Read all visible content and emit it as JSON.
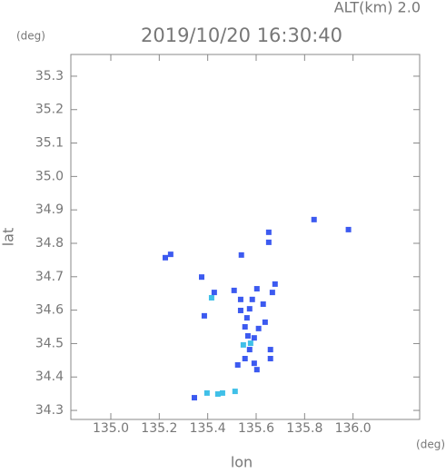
{
  "chart_data": {
    "type": "scatter",
    "header": "ALT(km) 2.0",
    "title": "2019/10/20 16:30:40",
    "y_unit": "(deg)",
    "x_unit": "(deg)",
    "xlabel": "lon",
    "ylabel": "lat",
    "xlim": [
      134.835,
      136.275
    ],
    "ylim": [
      34.273,
      35.365
    ],
    "xticks": [
      {
        "value": 135.0,
        "label": "135.0"
      },
      135.2,
      135.4,
      135.6,
      135.8,
      {
        "value": 136.0,
        "label": "136.0"
      }
    ],
    "yticks": [
      34.3,
      34.4,
      34.5,
      34.6,
      34.7,
      34.8,
      34.9,
      {
        "value": 35.0,
        "label": "35.0"
      },
      35.1,
      35.2,
      35.3
    ],
    "series": [
      {
        "color": "#3c5af0",
        "x": [
          135.247,
          135.225,
          135.839,
          135.981,
          135.652,
          135.652,
          135.539,
          135.375,
          135.427,
          135.509,
          135.536,
          135.603,
          135.678,
          135.667,
          135.629,
          135.584,
          135.536,
          135.562,
          135.554,
          135.566,
          135.573,
          135.554,
          135.637,
          135.61,
          135.659,
          135.659,
          135.524,
          135.592,
          135.603,
          135.386,
          135.573,
          135.592,
          135.345
        ],
        "values": [
          34.767,
          34.757,
          34.871,
          34.841,
          34.833,
          34.803,
          34.765,
          34.699,
          34.653,
          34.659,
          34.632,
          34.664,
          34.678,
          34.653,
          34.618,
          34.632,
          34.599,
          34.577,
          34.55,
          34.523,
          34.482,
          34.455,
          34.564,
          34.545,
          34.482,
          34.455,
          34.436,
          34.441,
          34.422,
          34.583,
          34.604,
          34.517,
          34.338
        ]
      },
      {
        "color": "#40c0e8",
        "x": [
          135.547,
          135.577,
          135.416,
          135.397,
          135.461,
          135.513,
          135.442
        ],
        "values": [
          34.496,
          34.501,
          34.637,
          34.352,
          34.352,
          34.357,
          34.349
        ]
      }
    ]
  }
}
